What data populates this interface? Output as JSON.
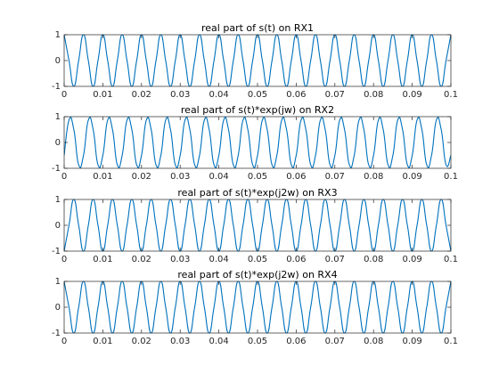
{
  "chart_data": [
    {
      "type": "line",
      "title": "real part of s(t) on RX1",
      "color": "#0072bd",
      "x": [
        0,
        0.00125,
        0.0025,
        0.00375,
        0.005,
        0.00625,
        0.0075,
        0.00875,
        0.01,
        0.01125,
        0.0125,
        0.01375,
        0.015,
        0.01625,
        0.0175,
        0.01875,
        0.02,
        0.02125,
        0.0225,
        0.02375,
        0.025,
        0.02625,
        0.0275,
        0.02875,
        0.03,
        0.03125,
        0.0325,
        0.03375,
        0.035,
        0.03625,
        0.0375,
        0.03875,
        0.04,
        0.04125,
        0.0425,
        0.04375,
        0.045,
        0.04625,
        0.0475,
        0.04875,
        0.05,
        0.05125,
        0.0525,
        0.05375,
        0.055,
        0.05625,
        0.0575,
        0.05875,
        0.06,
        0.06125,
        0.0625,
        0.06375,
        0.065,
        0.06625,
        0.0675,
        0.06875,
        0.07,
        0.07125,
        0.0725,
        0.07375,
        0.075,
        0.07625,
        0.0775,
        0.07875,
        0.08,
        0.08125,
        0.0825,
        0.08375,
        0.085,
        0.08625,
        0.0875,
        0.08875,
        0.09,
        0.09125,
        0.0925,
        0.09375,
        0.095,
        0.09625,
        0.0975,
        0.09875,
        0.1
      ],
      "values": [
        1,
        0,
        -1,
        0,
        1,
        0,
        -1,
        0,
        1,
        0,
        -1,
        0,
        1,
        0,
        -1,
        0,
        1,
        0,
        -1,
        0,
        1,
        0,
        -1,
        0,
        1,
        0,
        -1,
        0,
        1,
        0,
        -1,
        0,
        1,
        0,
        -1,
        0,
        1,
        0,
        -1,
        0,
        1,
        0,
        -1,
        0,
        1,
        0,
        -1,
        0,
        1,
        0,
        -1,
        0,
        1,
        0,
        -1,
        0,
        1,
        0,
        -1,
        0,
        1,
        0,
        -1,
        0,
        1,
        0,
        -1,
        0,
        1,
        0,
        -1,
        0,
        1,
        0,
        -1,
        0,
        1,
        0,
        -1,
        0,
        1
      ],
      "xlim": [
        0,
        0.1
      ],
      "ylim": [
        -1,
        1
      ],
      "xticks": [
        0,
        0.01,
        0.02,
        0.03,
        0.04,
        0.05,
        0.06,
        0.07,
        0.08,
        0.09,
        0.1
      ],
      "yticks": [
        -1,
        0,
        1
      ]
    },
    {
      "type": "line",
      "title": "real part of s(t)*exp(jw) on RX2",
      "color": "#0072bd",
      "x": [
        0,
        0.00125,
        0.0025,
        0.00375,
        0.005,
        0.00625,
        0.0075,
        0.00875,
        0.01,
        0.01125,
        0.0125,
        0.01375,
        0.015,
        0.01625,
        0.0175,
        0.01875,
        0.02,
        0.02125,
        0.0225,
        0.02375,
        0.025,
        0.02625,
        0.0275,
        0.02875,
        0.03,
        0.03125,
        0.0325,
        0.03375,
        0.035,
        0.03625,
        0.0375,
        0.03875,
        0.04,
        0.04125,
        0.0425,
        0.04375,
        0.045,
        0.04625,
        0.0475,
        0.04875,
        0.05,
        0.05125,
        0.0525,
        0.05375,
        0.055,
        0.05625,
        0.0575,
        0.05875,
        0.06,
        0.06125,
        0.0625,
        0.06375,
        0.065,
        0.06625,
        0.0675,
        0.06875,
        0.07,
        0.07125,
        0.0725,
        0.07375,
        0.075,
        0.07625,
        0.0775,
        0.07875,
        0.08,
        0.08125,
        0.0825,
        0.08375,
        0.085,
        0.08625,
        0.0875,
        0.08875,
        0.09,
        0.09125,
        0.0925,
        0.09375,
        0.095,
        0.09625,
        0.0975,
        0.09875,
        0.1
      ],
      "values": [
        -0.5,
        0.866,
        0.5,
        -0.866,
        -0.5,
        0.866,
        0.5,
        -0.866,
        -0.5,
        0.866,
        0.5,
        -0.866,
        -0.5,
        0.866,
        0.5,
        -0.866,
        -0.5,
        0.866,
        0.5,
        -0.866,
        -0.5,
        0.866,
        0.5,
        -0.866,
        -0.5,
        0.866,
        0.5,
        -0.866,
        -0.5,
        0.866,
        0.5,
        -0.866,
        -0.5,
        0.866,
        0.5,
        -0.866,
        -0.5,
        0.866,
        0.5,
        -0.866,
        -0.5,
        0.866,
        0.5,
        -0.866,
        -0.5,
        0.866,
        0.5,
        -0.866,
        -0.5,
        0.866,
        0.5,
        -0.866,
        -0.5,
        0.866,
        0.5,
        -0.866,
        -0.5,
        0.866,
        0.5,
        -0.866,
        -0.5,
        0.866,
        0.5,
        -0.866,
        -0.5,
        0.866,
        0.5,
        -0.866,
        -0.5,
        0.866,
        0.5,
        -0.866,
        -0.5,
        0.866,
        0.5,
        -0.866,
        -0.5,
        0.866,
        0.5,
        -0.866,
        -0.5
      ],
      "xlim": [
        0,
        0.1
      ],
      "ylim": [
        -1,
        1
      ],
      "xticks": [
        0,
        0.01,
        0.02,
        0.03,
        0.04,
        0.05,
        0.06,
        0.07,
        0.08,
        0.09,
        0.1
      ],
      "yticks": [
        -1,
        0,
        1
      ]
    },
    {
      "type": "line",
      "title": "real part of s(t)*exp(j2w) on RX3",
      "color": "#0072bd",
      "x": [
        0,
        0.00125,
        0.0025,
        0.00375,
        0.005,
        0.00625,
        0.0075,
        0.00875,
        0.01,
        0.01125,
        0.0125,
        0.01375,
        0.015,
        0.01625,
        0.0175,
        0.01875,
        0.02,
        0.02125,
        0.0225,
        0.02375,
        0.025,
        0.02625,
        0.0275,
        0.02875,
        0.03,
        0.03125,
        0.0325,
        0.03375,
        0.035,
        0.03625,
        0.0375,
        0.03875,
        0.04,
        0.04125,
        0.0425,
        0.04375,
        0.045,
        0.04625,
        0.0475,
        0.04875,
        0.05,
        0.05125,
        0.0525,
        0.05375,
        0.055,
        0.05625,
        0.0575,
        0.05875,
        0.06,
        0.06125,
        0.0625,
        0.06375,
        0.065,
        0.06625,
        0.0675,
        0.06875,
        0.07,
        0.07125,
        0.0725,
        0.07375,
        0.075,
        0.07625,
        0.0775,
        0.07875,
        0.08,
        0.08125,
        0.0825,
        0.08375,
        0.085,
        0.08625,
        0.0875,
        0.08875,
        0.09,
        0.09125,
        0.0925,
        0.09375,
        0.095,
        0.09625,
        0.0975,
        0.09875,
        0.1
      ],
      "values": [
        -1,
        0,
        1,
        0,
        -1,
        0,
        1,
        0,
        -1,
        0,
        1,
        0,
        -1,
        0,
        1,
        0,
        -1,
        0,
        1,
        0,
        -1,
        0,
        1,
        0,
        -1,
        0,
        1,
        0,
        -1,
        0,
        1,
        0,
        -1,
        0,
        1,
        0,
        -1,
        0,
        1,
        0,
        -1,
        0,
        1,
        0,
        -1,
        0,
        1,
        0,
        -1,
        0,
        1,
        0,
        -1,
        0,
        1,
        0,
        -1,
        0,
        1,
        0,
        -1,
        0,
        1,
        0,
        -1,
        0,
        1,
        0,
        -1,
        0,
        1,
        0,
        -1,
        0,
        1,
        0,
        -1,
        0,
        1,
        0,
        -1
      ],
      "xlim": [
        0,
        0.1
      ],
      "ylim": [
        -1,
        1
      ],
      "xticks": [
        0,
        0.01,
        0.02,
        0.03,
        0.04,
        0.05,
        0.06,
        0.07,
        0.08,
        0.09,
        0.1
      ],
      "yticks": [
        -1,
        0,
        1
      ]
    },
    {
      "type": "line",
      "title": "real part of s(t)*exp(j2w) on RX4",
      "color": "#0072bd",
      "x": [
        0,
        0.00125,
        0.0025,
        0.00375,
        0.005,
        0.00625,
        0.0075,
        0.00875,
        0.01,
        0.01125,
        0.0125,
        0.01375,
        0.015,
        0.01625,
        0.0175,
        0.01875,
        0.02,
        0.02125,
        0.0225,
        0.02375,
        0.025,
        0.02625,
        0.0275,
        0.02875,
        0.03,
        0.03125,
        0.0325,
        0.03375,
        0.035,
        0.03625,
        0.0375,
        0.03875,
        0.04,
        0.04125,
        0.0425,
        0.04375,
        0.045,
        0.04625,
        0.0475,
        0.04875,
        0.05,
        0.05125,
        0.0525,
        0.05375,
        0.055,
        0.05625,
        0.0575,
        0.05875,
        0.06,
        0.06125,
        0.0625,
        0.06375,
        0.065,
        0.06625,
        0.0675,
        0.06875,
        0.07,
        0.07125,
        0.0725,
        0.07375,
        0.075,
        0.07625,
        0.0775,
        0.07875,
        0.08,
        0.08125,
        0.0825,
        0.08375,
        0.085,
        0.08625,
        0.0875,
        0.08875,
        0.09,
        0.09125,
        0.0925,
        0.09375,
        0.095,
        0.09625,
        0.0975,
        0.09875,
        0.1
      ],
      "values": [
        1,
        0,
        -1,
        0,
        1,
        0,
        -1,
        0,
        1,
        0,
        -1,
        0,
        1,
        0,
        -1,
        0,
        1,
        0,
        -1,
        0,
        1,
        0,
        -1,
        0,
        1,
        0,
        -1,
        0,
        1,
        0,
        -1,
        0,
        1,
        0,
        -1,
        0,
        1,
        0,
        -1,
        0,
        1,
        0,
        -1,
        0,
        1,
        0,
        -1,
        0,
        1,
        0,
        -1,
        0,
        1,
        0,
        -1,
        0,
        1,
        0,
        -1,
        0,
        1,
        0,
        -1,
        0,
        1,
        0,
        -1,
        0,
        1,
        0,
        -1,
        0,
        1,
        0,
        -1,
        0,
        1,
        0,
        -1,
        0,
        1
      ],
      "xlim": [
        0,
        0.1
      ],
      "ylim": [
        -1,
        1
      ],
      "xticks": [
        0,
        0.01,
        0.02,
        0.03,
        0.04,
        0.05,
        0.06,
        0.07,
        0.08,
        0.09,
        0.1
      ],
      "yticks": [
        -1,
        0,
        1
      ]
    }
  ]
}
